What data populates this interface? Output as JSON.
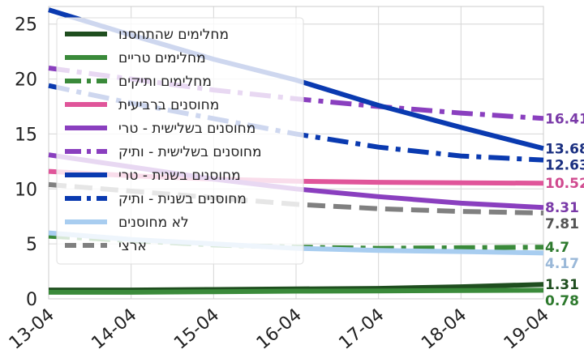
{
  "chart_data": {
    "type": "line",
    "categories": [
      "13-04",
      "14-04",
      "15-04",
      "16-04",
      "17-04",
      "18-04",
      "19-04"
    ],
    "ylim": [
      0,
      26.6
    ],
    "yticks": [
      0,
      5,
      10,
      15,
      20,
      25
    ],
    "grid": true,
    "legend_position": "top-left",
    "series": [
      {
        "name": "מחלימים שהתחסנו",
        "color": "#1f4e1f",
        "dash": "solid",
        "values": [
          0.8,
          0.8,
          0.85,
          0.9,
          0.95,
          1.1,
          1.31
        ]
      },
      {
        "name": "מחלימים טריים",
        "color": "#3a8a3a",
        "dash": "solid",
        "values": [
          0.6,
          0.6,
          0.65,
          0.7,
          0.72,
          0.75,
          0.78
        ]
      },
      {
        "name": "מחלימים ותיקים",
        "color": "#3a8a3a",
        "dash": "dashdot",
        "values": [
          5.7,
          5.3,
          4.9,
          4.7,
          4.6,
          4.65,
          4.7
        ]
      },
      {
        "name": "מחוסנים ברביעית",
        "color": "#e0559a",
        "dash": "solid",
        "values": [
          11.6,
          11.2,
          10.9,
          10.7,
          10.6,
          10.55,
          10.52
        ]
      },
      {
        "name": "מחוסנים בשלישית - טרי",
        "color": "#8a3fbf",
        "dash": "solid",
        "values": [
          13.1,
          12.0,
          10.9,
          10.0,
          9.3,
          8.7,
          8.31
        ]
      },
      {
        "name": "מחוסנים בשלישית - ותיק",
        "color": "#8a3fbf",
        "dash": "dashdot",
        "values": [
          21.0,
          20.0,
          19.0,
          18.2,
          17.5,
          16.9,
          16.41
        ]
      },
      {
        "name": "מחוסנים בשנית - טרי",
        "color": "#0a3ab0",
        "dash": "solid",
        "values": [
          26.3,
          24.0,
          21.8,
          19.9,
          17.6,
          15.6,
          13.68
        ]
      },
      {
        "name": "מחוסנים בשנית - ותיק",
        "color": "#0a3ab0",
        "dash": "dashdot",
        "values": [
          19.4,
          17.8,
          16.4,
          15.0,
          13.8,
          13.0,
          12.63
        ]
      },
      {
        "name": "לא מחוסנים",
        "color": "#a8cdf0",
        "dash": "solid",
        "values": [
          6.0,
          5.4,
          5.0,
          4.6,
          4.4,
          4.3,
          4.17
        ]
      },
      {
        "name": "ארצי",
        "color": "#808080",
        "dash": "dashed",
        "values": [
          10.4,
          9.8,
          9.2,
          8.6,
          8.2,
          7.95,
          7.81
        ]
      }
    ],
    "end_labels": [
      {
        "text": "16.41",
        "color": "#7a3aa8",
        "value": 16.41
      },
      {
        "text": "13.68",
        "color": "#1a2f80",
        "value": 13.68
      },
      {
        "text": "12.63",
        "color": "#1a2f80",
        "value": 12.63
      },
      {
        "text": "10.52",
        "color": "#d04a8f",
        "value": 10.52
      },
      {
        "text": "8.31",
        "color": "#7a3aa8",
        "value": 8.31
      },
      {
        "text": "7.81",
        "color": "#555555",
        "value": 7.81
      },
      {
        "text": "4.7",
        "color": "#2e7a2e",
        "value": 4.7
      },
      {
        "text": "4.17",
        "color": "#9ab8d8",
        "value": 4.17
      },
      {
        "text": "1.31",
        "color": "#1f4e1f",
        "value": 1.31
      },
      {
        "text": "0.78",
        "color": "#2e7a2e",
        "value": 0.78
      }
    ]
  }
}
